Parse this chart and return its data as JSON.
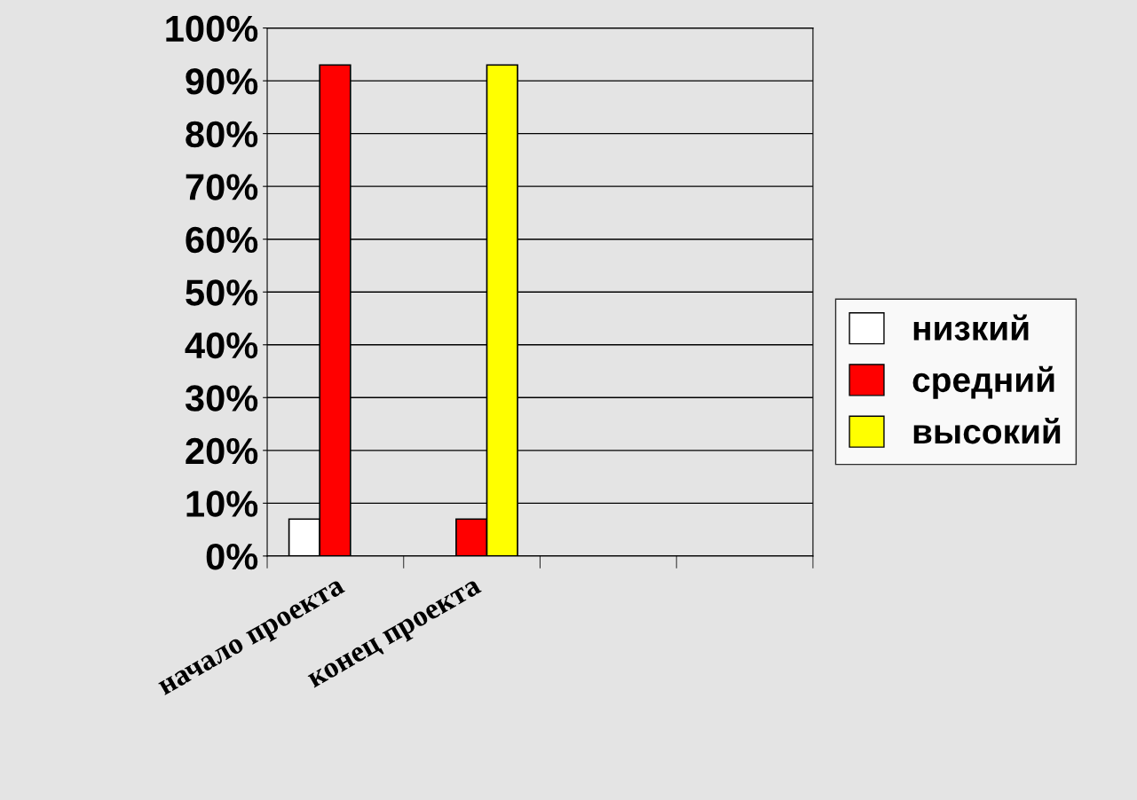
{
  "chart_data": {
    "type": "bar",
    "categories": [
      "начало проекта",
      "конец проекта",
      null,
      null
    ],
    "series": [
      {
        "name": "низкий",
        "color": "#ffffff",
        "values": [
          7,
          null,
          null,
          null
        ]
      },
      {
        "name": "средний",
        "color": "#ff0000",
        "values": [
          93,
          7,
          null,
          null
        ]
      },
      {
        "name": "высокий",
        "color": "#ffff00",
        "values": [
          null,
          93,
          null,
          null
        ]
      }
    ],
    "ylim": [
      0,
      100
    ],
    "yticks": [
      {
        "value": 0,
        "label": "0%"
      },
      {
        "value": 10,
        "label": "10%"
      },
      {
        "value": 20,
        "label": "20%"
      },
      {
        "value": 30,
        "label": "30%"
      },
      {
        "value": 40,
        "label": "40%"
      },
      {
        "value": 50,
        "label": "50%"
      },
      {
        "value": 60,
        "label": "60%"
      },
      {
        "value": 70,
        "label": "70%"
      },
      {
        "value": 80,
        "label": "80%"
      },
      {
        "value": 90,
        "label": "90%"
      },
      {
        "value": 100,
        "label": "100%"
      }
    ],
    "grid": "y",
    "legend": "right"
  }
}
